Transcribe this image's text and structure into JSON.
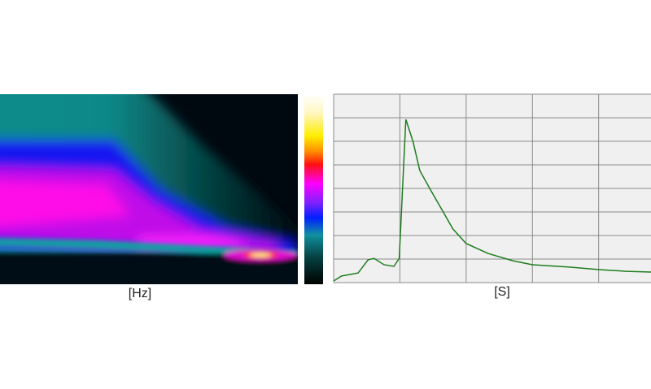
{
  "chart_data": [
    {
      "type": "heatmap",
      "xlabel": "[Hz]"
    },
    {
      "type": "line",
      "xlabel": "[S]",
      "x": [
        0,
        0.12,
        0.37,
        0.52,
        0.61,
        0.76,
        0.91,
        0.99,
        1.09,
        1.2,
        1.3,
        1.47,
        1.66,
        1.8,
        2.0,
        2.33,
        2.7,
        3.0,
        3.56,
        4.01,
        4.42,
        4.79
      ],
      "series": [
        {
          "color": "#1e7d1e",
          "values": [
            0.07,
            0.28,
            0.41,
            0.97,
            1.03,
            0.76,
            0.69,
            1.03,
            6.93,
            5.97,
            4.76,
            3.9,
            2.97,
            2.28,
            1.66,
            1.24,
            0.93,
            0.76,
            0.66,
            0.55,
            0.48,
            0.45
          ]
        }
      ],
      "xlim": [
        0,
        4.79
      ],
      "ylim": [
        0,
        8
      ],
      "xticks": [
        0,
        1,
        2,
        3,
        4
      ],
      "yticks": [
        0,
        1,
        2,
        3,
        4,
        5,
        6,
        7,
        8
      ],
      "grid": true
    }
  ]
}
